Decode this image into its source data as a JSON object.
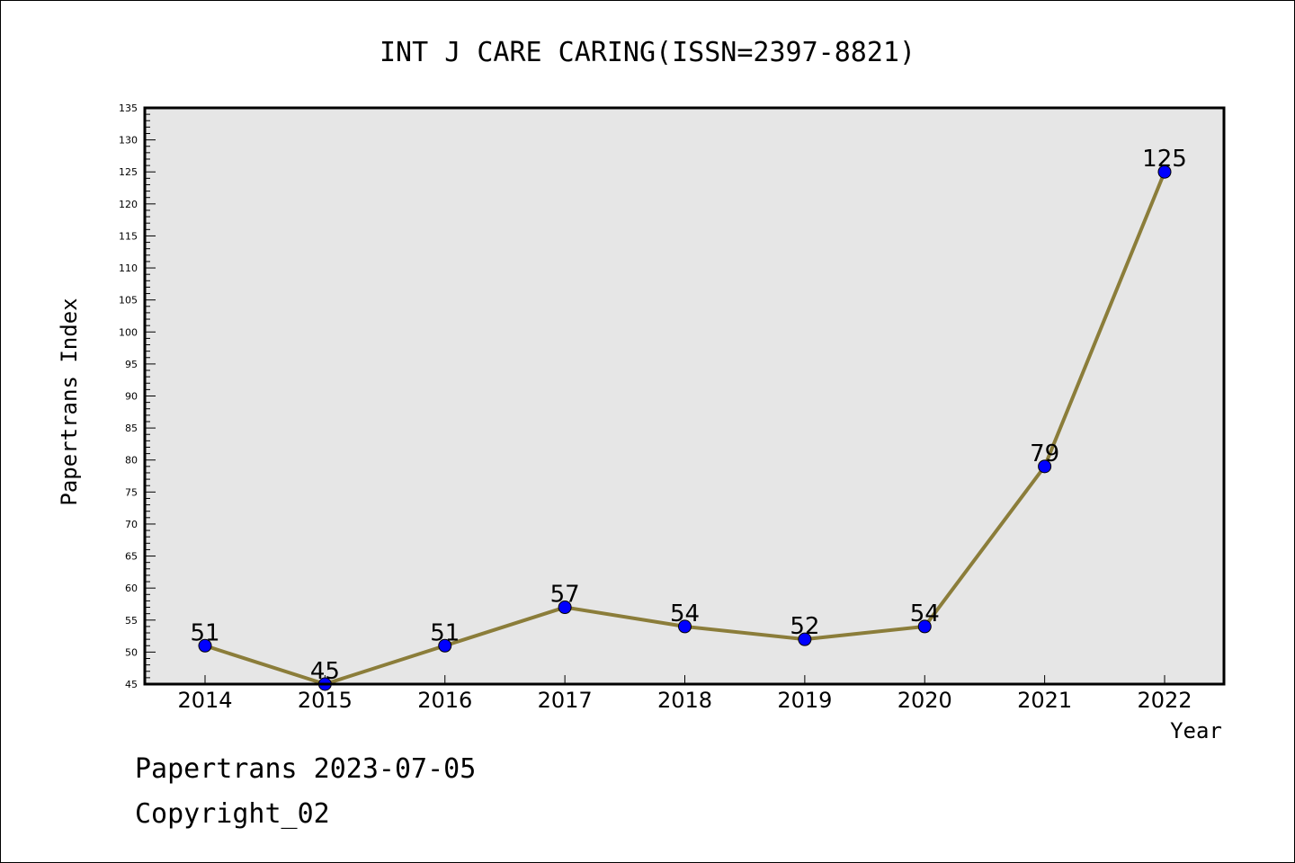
{
  "chart_data": {
    "type": "line",
    "title": "INT J CARE CARING(ISSN=2397-8821)",
    "xlabel": "Year",
    "ylabel": "Papertrans Index",
    "categories": [
      "2014",
      "2015",
      "2016",
      "2017",
      "2018",
      "2019",
      "2020",
      "2021",
      "2022"
    ],
    "series": [
      {
        "values": [
          51,
          45,
          51,
          57,
          54,
          52,
          54,
          79,
          125
        ]
      }
    ],
    "ylim": [
      45,
      135
    ],
    "yticks": [
      45,
      50,
      55,
      60,
      65,
      70,
      75,
      80,
      85,
      90,
      95,
      100,
      105,
      110,
      115,
      120,
      125,
      130,
      135
    ],
    "grid": false,
    "legend": "none",
    "data_labels": true,
    "colors": {
      "line": "#8b7d3a",
      "marker": "#0000ff",
      "plot_background": "#e6e6e6"
    }
  },
  "footer": {
    "line1": "Papertrans 2023-07-05",
    "line2": "Copyright_02"
  }
}
